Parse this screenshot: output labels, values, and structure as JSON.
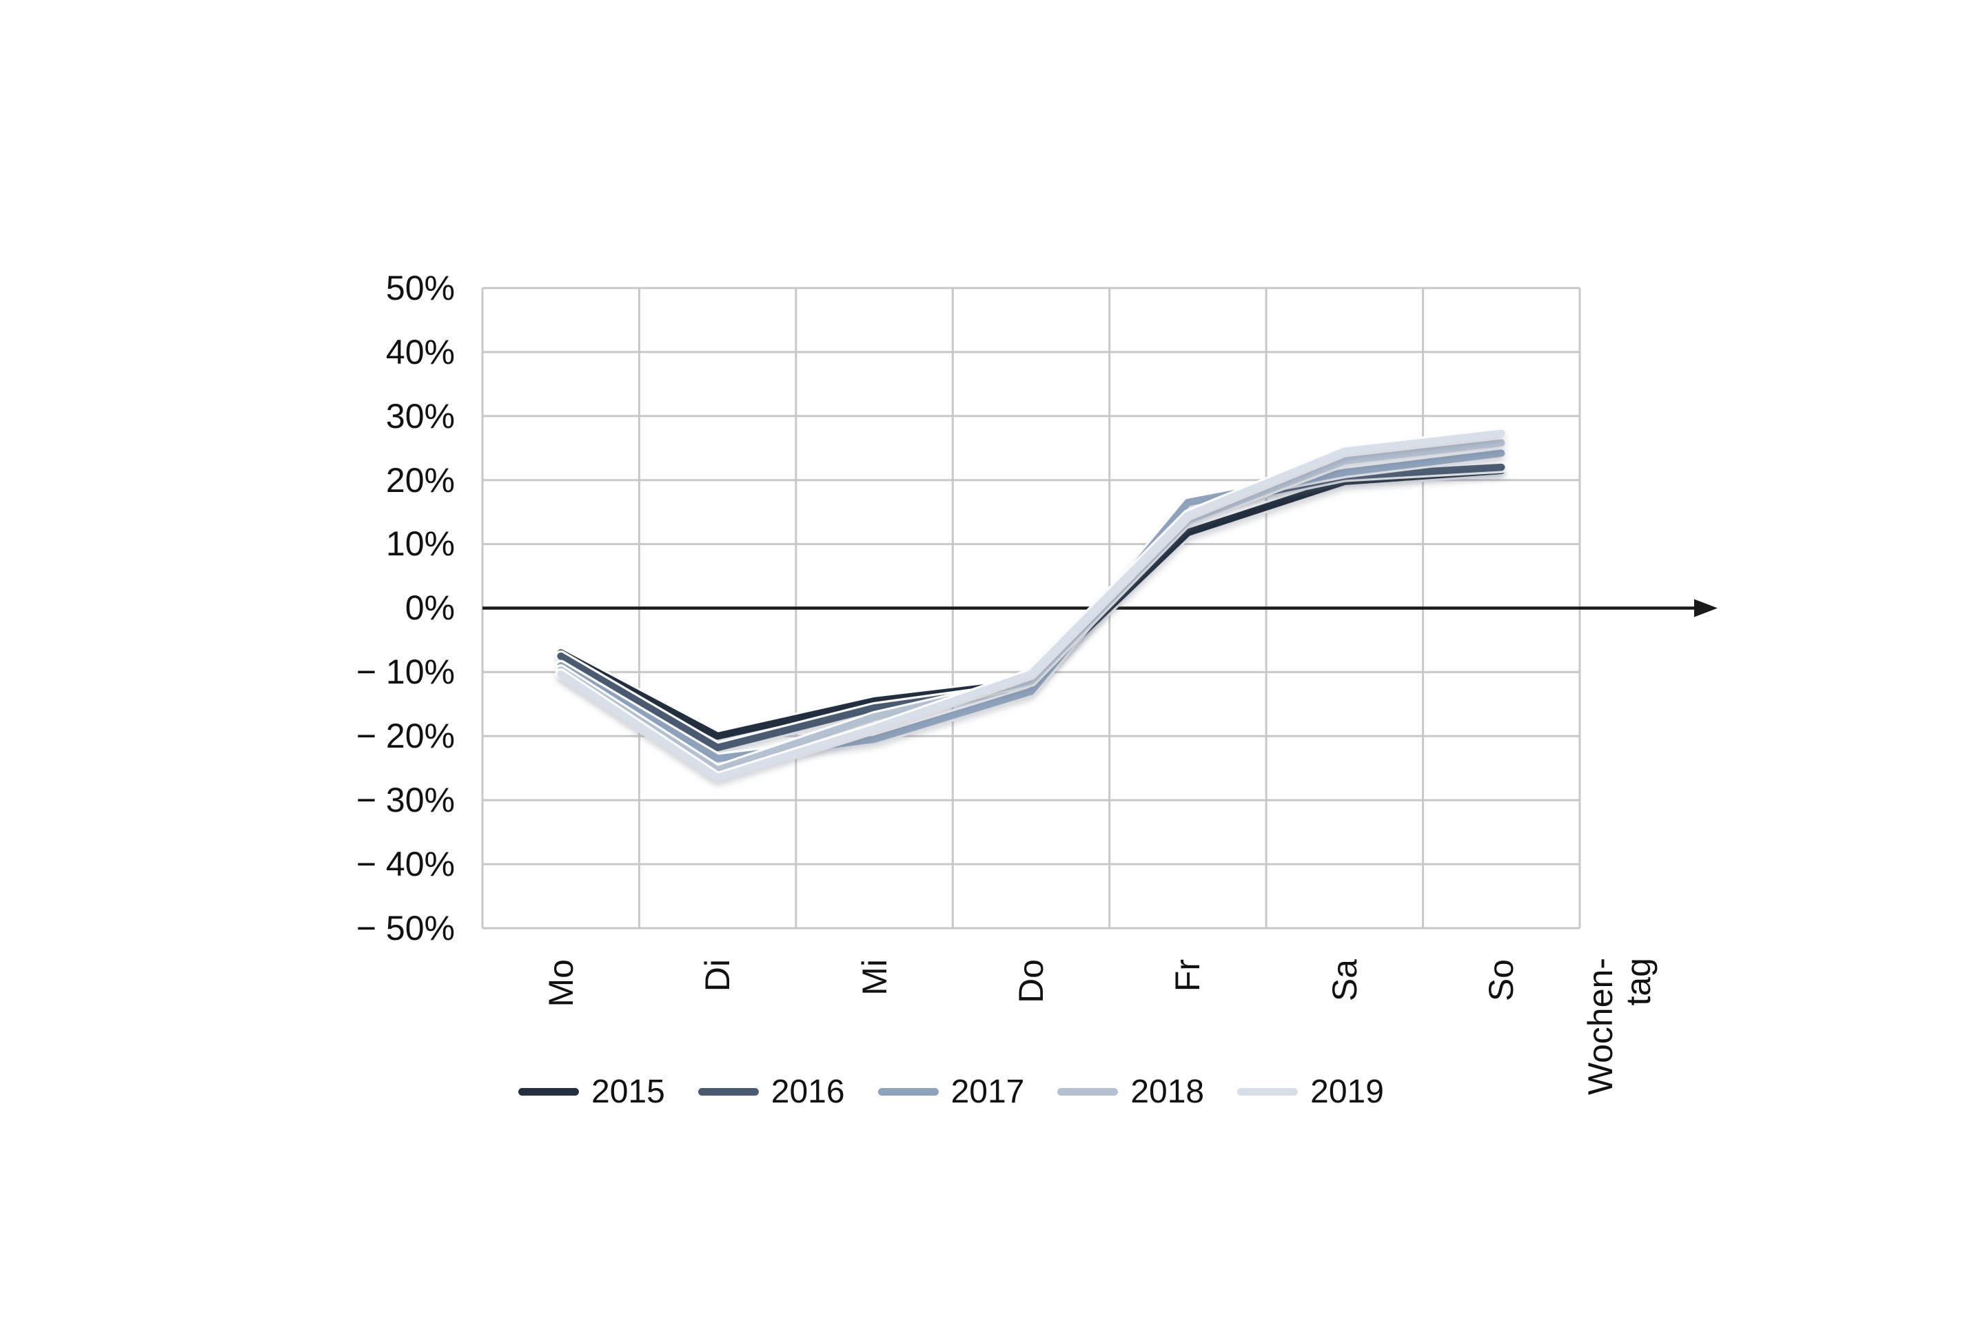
{
  "chart_data": {
    "type": "line",
    "title": "",
    "categories": [
      "Mo",
      "Di",
      "Mi",
      "Do",
      "Fr",
      "Sa",
      "So"
    ],
    "xlabel": "Wochen-tag",
    "xlabel_lines": [
      "Wochen-",
      "tag"
    ],
    "ylabel": "",
    "ylim": [
      -50,
      50
    ],
    "ytick_step": 10,
    "y_tick_labels": [
      "50%",
      "40%",
      "30%",
      "20%",
      "10%",
      "0%",
      "− 10%",
      "− 20%",
      "− 30%",
      "− 40%",
      "− 50%"
    ],
    "grid": true,
    "legend_position": "bottom",
    "zero_axis_arrow": true,
    "colors": {
      "gridline": "#c8c8c8",
      "zero_axis": "#1a1a1a",
      "text": "#111111",
      "background": "#ffffff"
    },
    "series": [
      {
        "name": "2015",
        "color": "#232f3e",
        "values": [
          -7.0,
          -20.0,
          -14.5,
          -11.6,
          11.8,
          19.8,
          21.5
        ]
      },
      {
        "name": "2016",
        "color": "#4a5b71",
        "values": [
          -7.5,
          -21.8,
          -15.6,
          -12.2,
          15.6,
          20.6,
          22.0
        ]
      },
      {
        "name": "2017",
        "color": "#8fa2bc",
        "values": [
          -9.0,
          -23.5,
          -20.5,
          -13.0,
          16.5,
          21.2,
          24.2
        ]
      },
      {
        "name": "2018",
        "color": "#b5c0d1",
        "values": [
          -9.7,
          -25.3,
          -17.0,
          -11.4,
          13.7,
          23.0,
          25.8
        ]
      },
      {
        "name": "2019",
        "color": "#d9dfe8",
        "values": [
          -10.3,
          -26.5,
          -18.8,
          -10.3,
          14.5,
          24.5,
          27.3
        ]
      }
    ]
  }
}
